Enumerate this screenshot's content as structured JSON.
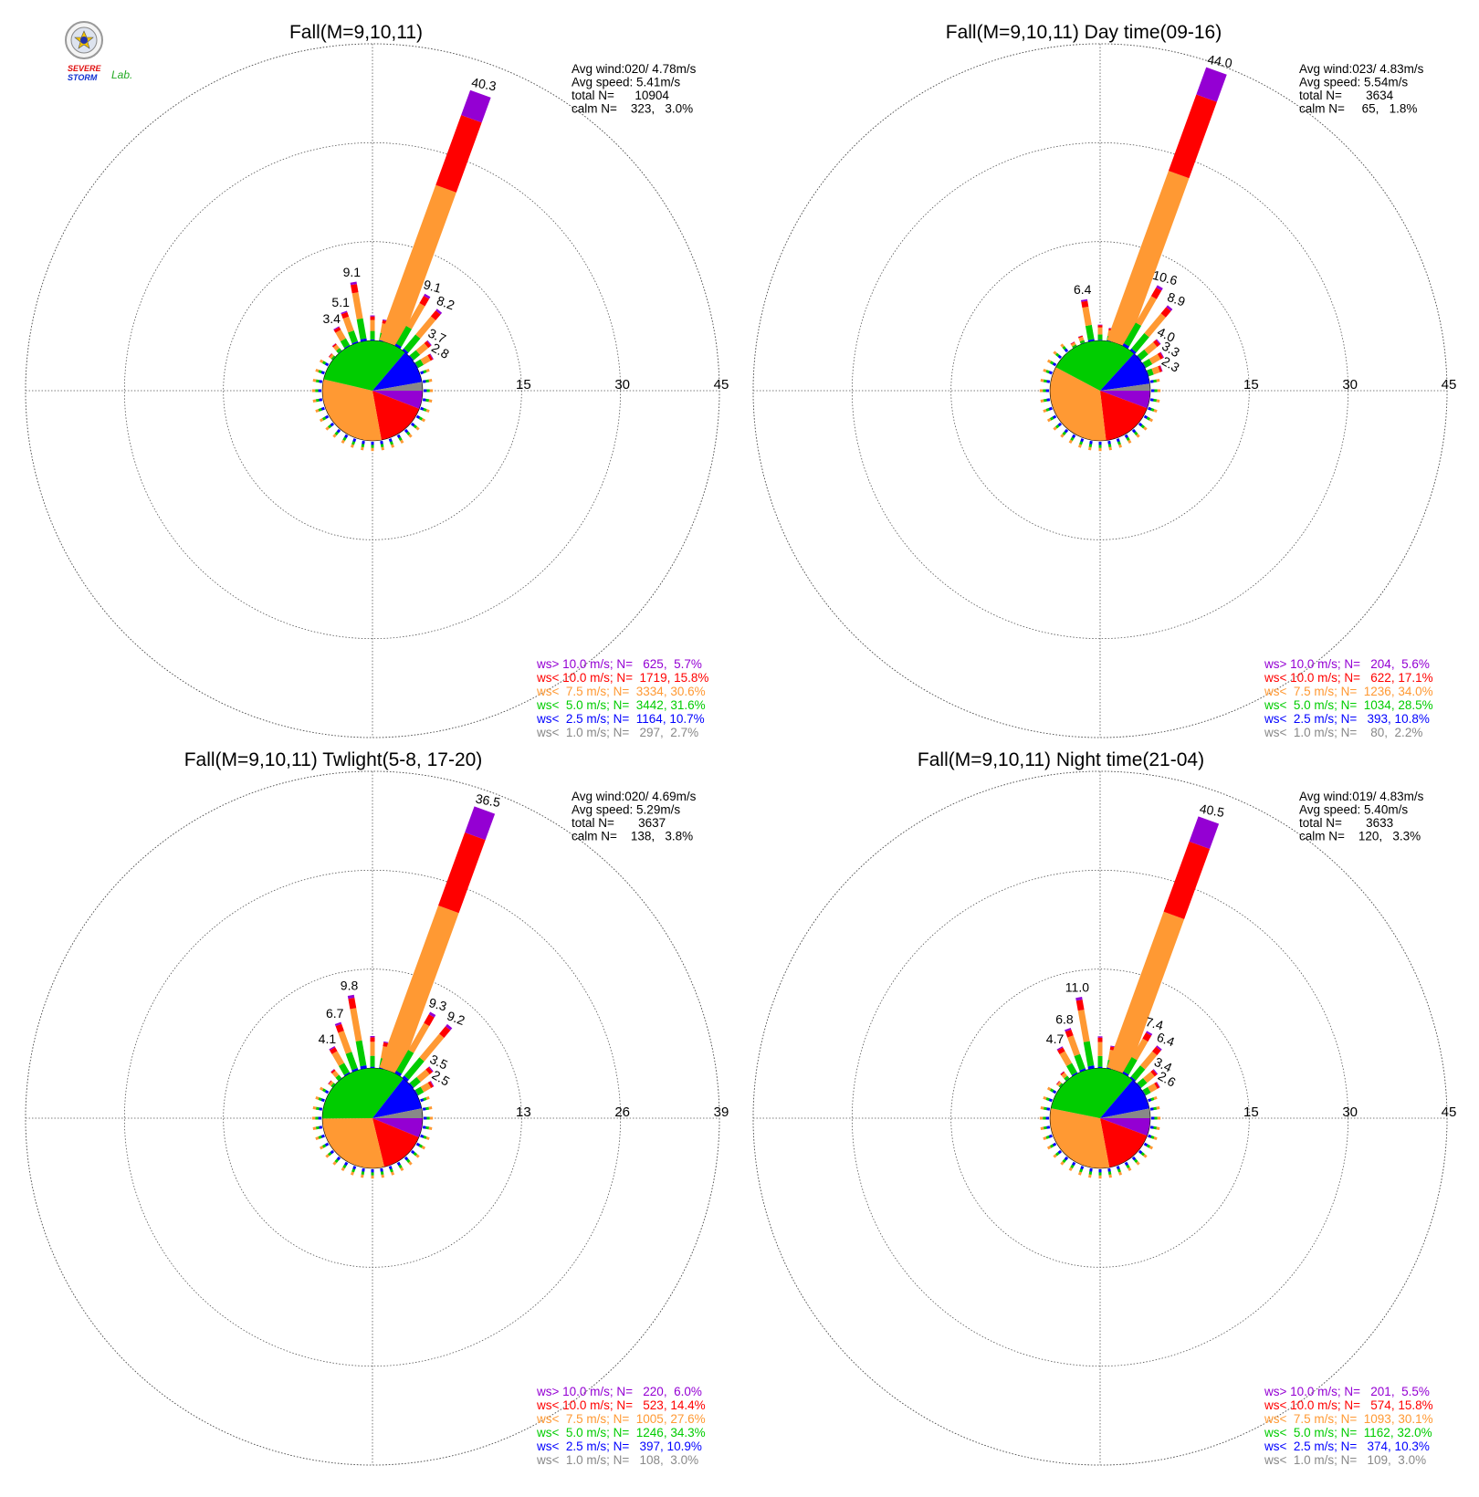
{
  "logo": {
    "text_severe": "SEVERE",
    "text_storm": "STORM",
    "text_lab": "Lab."
  },
  "colors": {
    "ws_gt_10": "#9400d3",
    "ws_lt_10": "#ff0000",
    "ws_lt_7_5": "#ff9933",
    "ws_lt_5": "#00cc00",
    "ws_lt_2_5": "#0000ff",
    "ws_lt_1": "#888888",
    "grid": "#555555"
  },
  "chart_data": [
    {
      "type": "windrose",
      "title": "Fall(M=9,10,11)",
      "rings": [
        "15",
        "30",
        "45"
      ],
      "rmax": 45,
      "stats": [
        "Avg wind:020/ 4.78m/s",
        "Avg speed: 5.41m/s",
        "total N=      10904",
        "calm N=    323,   3.0%"
      ],
      "legend": [
        {
          "text": "ws> 10.0 m/s; N=   625,  5.7%",
          "color": "#9400d3"
        },
        {
          "text": "ws< 10.0 m/s; N=  1719, 15.8%",
          "color": "#ff0000"
        },
        {
          "text": "ws<  7.5 m/s; N=  3334, 30.6%",
          "color": "#ff9933"
        },
        {
          "text": "ws<  5.0 m/s; N=  3442, 31.6%",
          "color": "#00cc00"
        },
        {
          "text": "ws<  2.5 m/s; N=  1164, 10.7%",
          "color": "#0000ff"
        },
        {
          "text": "ws<  1.0 m/s; N=   297,  2.7%",
          "color": "#888888"
        }
      ],
      "pie": [
        5.7,
        15.8,
        30.6,
        31.6,
        10.7,
        2.7
      ],
      "labeled_bars": [
        {
          "dir": 20,
          "value": 40.3,
          "label": "40.3"
        },
        {
          "dir": 350,
          "value": 9.1,
          "label": "9.1"
        },
        {
          "dir": 340,
          "value": 5.1,
          "label": "5.1"
        },
        {
          "dir": 330,
          "value": 3.4,
          "label": "3.4"
        },
        {
          "dir": 30,
          "value": 9.1,
          "label": "9.1"
        },
        {
          "dir": 40,
          "value": 8.2,
          "label": "8.2"
        },
        {
          "dir": 50,
          "value": 3.7,
          "label": "3.7"
        },
        {
          "dir": 60,
          "value": 2.8,
          "label": "2.8"
        }
      ],
      "small_bars": [
        {
          "dir": 0,
          "value": 3.8
        },
        {
          "dir": 10,
          "value": 3.3
        },
        {
          "dir": 320,
          "value": 1.5
        },
        {
          "dir": 310,
          "value": 0.8
        }
      ]
    },
    {
      "type": "windrose",
      "title": "Fall(M=9,10,11) Day time(09-16)",
      "rings": [
        "15",
        "30",
        "45"
      ],
      "rmax": 45,
      "stats": [
        "Avg wind:023/ 4.83m/s",
        "Avg speed: 5.54m/s",
        "total N=       3634",
        "calm N=     65,   1.8%"
      ],
      "legend": [
        {
          "text": "ws> 10.0 m/s; N=   204,  5.6%",
          "color": "#9400d3"
        },
        {
          "text": "ws< 10.0 m/s; N=   622, 17.1%",
          "color": "#ff0000"
        },
        {
          "text": "ws<  7.5 m/s; N=  1236, 34.0%",
          "color": "#ff9933"
        },
        {
          "text": "ws<  5.0 m/s; N=  1034, 28.5%",
          "color": "#00cc00"
        },
        {
          "text": "ws<  2.5 m/s; N=   393, 10.8%",
          "color": "#0000ff"
        },
        {
          "text": "ws<  1.0 m/s; N=    80,  2.2%",
          "color": "#888888"
        }
      ],
      "pie": [
        5.6,
        17.1,
        34.0,
        28.5,
        10.8,
        2.2
      ],
      "labeled_bars": [
        {
          "dir": 20,
          "value": 44.0,
          "label": "44.0"
        },
        {
          "dir": 350,
          "value": 6.4,
          "label": "6.4"
        },
        {
          "dir": 30,
          "value": 10.6,
          "label": "10.6"
        },
        {
          "dir": 40,
          "value": 8.9,
          "label": "8.9"
        },
        {
          "dir": 50,
          "value": 4.0,
          "label": "4.0"
        },
        {
          "dir": 60,
          "value": 3.3,
          "label": "3.3"
        },
        {
          "dir": 70,
          "value": 2.3,
          "label": "2.3"
        }
      ],
      "small_bars": [
        {
          "dir": 0,
          "value": 2.4
        },
        {
          "dir": 10,
          "value": 2.0
        },
        {
          "dir": 340,
          "value": 1.2
        },
        {
          "dir": 330,
          "value": 0.8
        }
      ]
    },
    {
      "type": "windrose",
      "title": "Fall(M=9,10,11) Twlight(5-8, 17-20)",
      "rings": [
        "13",
        "26",
        "39"
      ],
      "rmax": 39,
      "stats": [
        "Avg wind:020/ 4.69m/s",
        "Avg speed: 5.29m/s",
        "total N=       3637",
        "calm N=    138,   3.8%"
      ],
      "legend": [
        {
          "text": "ws> 10.0 m/s; N=   220,  6.0%",
          "color": "#9400d3"
        },
        {
          "text": "ws< 10.0 m/s; N=   523, 14.4%",
          "color": "#ff0000"
        },
        {
          "text": "ws<  7.5 m/s; N=  1005, 27.6%",
          "color": "#ff9933"
        },
        {
          "text": "ws<  5.0 m/s; N=  1246, 34.3%",
          "color": "#00cc00"
        },
        {
          "text": "ws<  2.5 m/s; N=   397, 10.9%",
          "color": "#0000ff"
        },
        {
          "text": "ws<  1.0 m/s; N=   108,  3.0%",
          "color": "#888888"
        }
      ],
      "pie": [
        6.0,
        14.4,
        27.6,
        34.3,
        10.9,
        3.0
      ],
      "labeled_bars": [
        {
          "dir": 20,
          "value": 36.5,
          "label": "36.5"
        },
        {
          "dir": 350,
          "value": 9.8,
          "label": "9.8"
        },
        {
          "dir": 340,
          "value": 6.7,
          "label": "6.7"
        },
        {
          "dir": 330,
          "value": 4.1,
          "label": "4.1"
        },
        {
          "dir": 30,
          "value": 9.3,
          "label": "9.3"
        },
        {
          "dir": 40,
          "value": 9.2,
          "label": "9.2"
        },
        {
          "dir": 50,
          "value": 3.5,
          "label": "3.5"
        },
        {
          "dir": 60,
          "value": 2.5,
          "label": "2.5"
        }
      ],
      "small_bars": [
        {
          "dir": 0,
          "value": 4.2
        },
        {
          "dir": 10,
          "value": 3.6
        },
        {
          "dir": 320,
          "value": 1.6
        },
        {
          "dir": 310,
          "value": 0.8
        }
      ]
    },
    {
      "type": "windrose",
      "title": "Fall(M=9,10,11) Night time(21-04)",
      "rings": [
        "15",
        "30",
        "45"
      ],
      "rmax": 45,
      "stats": [
        "Avg wind:019/ 4.83m/s",
        "Avg speed: 5.40m/s",
        "total N=       3633",
        "calm N=    120,   3.3%"
      ],
      "legend": [
        {
          "text": "ws> 10.0 m/s; N=   201,  5.5%",
          "color": "#9400d3"
        },
        {
          "text": "ws< 10.0 m/s; N=   574, 15.8%",
          "color": "#ff0000"
        },
        {
          "text": "ws<  7.5 m/s; N=  1093, 30.1%",
          "color": "#ff9933"
        },
        {
          "text": "ws<  5.0 m/s; N=  1162, 32.0%",
          "color": "#00cc00"
        },
        {
          "text": "ws<  2.5 m/s; N=   374, 10.3%",
          "color": "#0000ff"
        },
        {
          "text": "ws<  1.0 m/s; N=   109,  3.0%",
          "color": "#888888"
        }
      ],
      "pie": [
        5.5,
        15.8,
        30.1,
        32.0,
        10.3,
        3.0
      ],
      "labeled_bars": [
        {
          "dir": 20,
          "value": 40.5,
          "label": "40.5"
        },
        {
          "dir": 350,
          "value": 11.0,
          "label": "11.0"
        },
        {
          "dir": 340,
          "value": 6.8,
          "label": "6.8"
        },
        {
          "dir": 330,
          "value": 4.7,
          "label": "4.7"
        },
        {
          "dir": 30,
          "value": 7.4,
          "label": "7.4"
        },
        {
          "dir": 40,
          "value": 6.4,
          "label": "6.4"
        },
        {
          "dir": 50,
          "value": 3.4,
          "label": "3.4"
        },
        {
          "dir": 60,
          "value": 2.6,
          "label": "2.6"
        }
      ],
      "small_bars": [
        {
          "dir": 0,
          "value": 4.8
        },
        {
          "dir": 10,
          "value": 3.5
        },
        {
          "dir": 320,
          "value": 1.4
        },
        {
          "dir": 310,
          "value": 0.8
        }
      ]
    }
  ]
}
